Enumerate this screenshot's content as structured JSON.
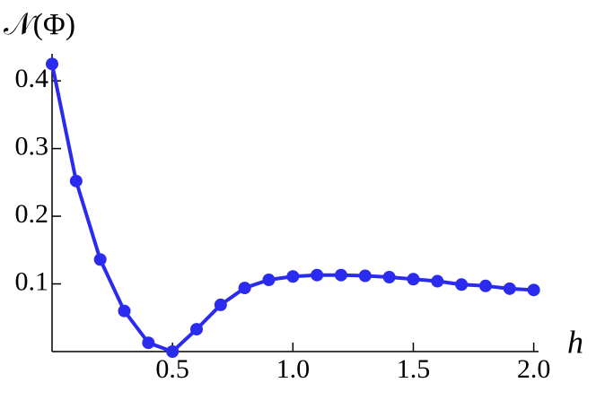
{
  "chart_data": {
    "type": "line",
    "x_label": "h",
    "y_label": "𝒩(Φ)",
    "x": [
      0,
      0.1,
      0.2,
      0.3,
      0.4,
      0.5,
      0.6,
      0.7,
      0.8,
      0.9,
      1.0,
      1.1,
      1.2,
      1.3,
      1.4,
      1.5,
      1.6,
      1.7,
      1.8,
      1.9,
      2.0
    ],
    "series": [
      {
        "color": "#2b2bef",
        "values": [
          0.425,
          0.252,
          0.136,
          0.06,
          0.013,
          0.0,
          0.033,
          0.069,
          0.094,
          0.106,
          0.111,
          0.113,
          0.113,
          0.112,
          0.11,
          0.107,
          0.104,
          0.099,
          0.097,
          0.093,
          0.091
        ]
      }
    ],
    "xlim": [
      0,
      2.02
    ],
    "ylim": [
      0,
      0.44
    ],
    "xticks": [
      0.5,
      {
        "value": 1.0,
        "label": "1.0"
      },
      1.5,
      {
        "value": 2.0,
        "label": "2.0"
      }
    ],
    "yticks": [
      0.1,
      0.2,
      0.3,
      0.4
    ]
  }
}
